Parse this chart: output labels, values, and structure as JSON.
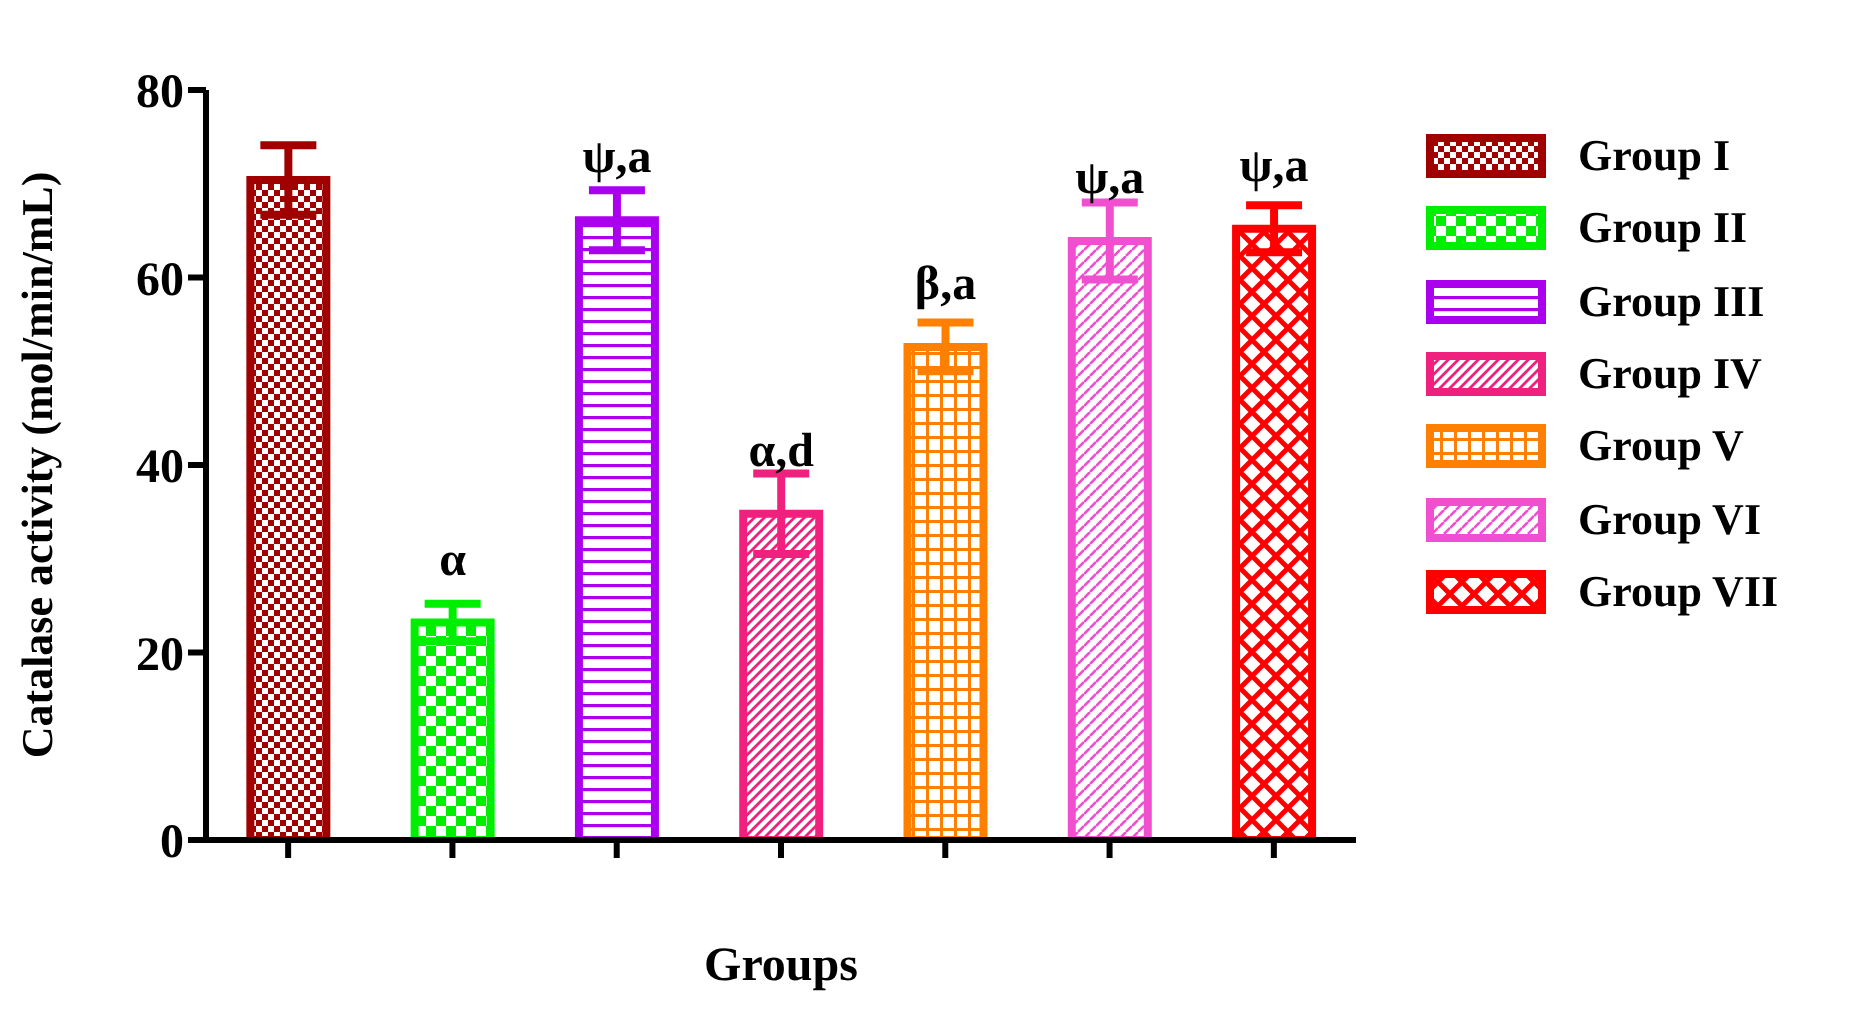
{
  "chart_data": {
    "type": "bar",
    "xlabel": "Groups",
    "ylabel": "Catalase activity (mol/min/mL)",
    "categories": [
      null,
      null,
      null,
      null,
      null,
      null,
      null
    ],
    "series": [
      {
        "name": "Group I",
        "color": "#a00000",
        "values": [
          70.4,
          null,
          null,
          null,
          null,
          null,
          null
        ],
        "errors": [
          3.7,
          null,
          null,
          null,
          null,
          null,
          null
        ]
      },
      {
        "name": "Group II",
        "color": "#00ee00",
        "values": [
          null,
          23.2,
          null,
          null,
          null,
          null,
          null
        ],
        "errors": [
          null,
          2.0,
          null,
          null,
          null,
          null,
          null
        ],
        "value_labels": [
          null,
          "α",
          null,
          null,
          null,
          null,
          null
        ]
      },
      {
        "name": "Group III",
        "color": "#aa00ee",
        "values": [
          null,
          null,
          66.1,
          null,
          null,
          null,
          null
        ],
        "errors": [
          null,
          null,
          3.2,
          null,
          null,
          null,
          null
        ],
        "value_labels": [
          null,
          null,
          "ψ,a",
          null,
          null,
          null,
          null
        ]
      },
      {
        "name": "Group IV",
        "color": "#f0207f",
        "values": [
          null,
          null,
          null,
          34.8,
          null,
          null,
          null
        ],
        "errors": [
          null,
          null,
          null,
          4.3,
          null,
          null,
          null
        ],
        "value_labels": [
          null,
          null,
          null,
          "α,d",
          null,
          null,
          null
        ]
      },
      {
        "name": "Group V",
        "color": "#ff8000",
        "values": [
          null,
          null,
          null,
          null,
          52.6,
          null,
          null
        ],
        "errors": [
          null,
          null,
          null,
          null,
          2.6,
          null,
          null
        ],
        "value_labels": [
          null,
          null,
          null,
          null,
          "β,a",
          null,
          null
        ]
      },
      {
        "name": "Group VI",
        "color": "#f050d0",
        "values": [
          null,
          null,
          null,
          null,
          null,
          63.9,
          null
        ],
        "errors": [
          null,
          null,
          null,
          null,
          null,
          4.1,
          null
        ],
        "value_labels": [
          null,
          null,
          null,
          null,
          null,
          "ψ,a",
          null
        ]
      },
      {
        "name": "Group VII",
        "color": "#ff0000",
        "values": [
          null,
          null,
          null,
          null,
          null,
          null,
          65.2
        ],
        "errors": [
          null,
          null,
          null,
          null,
          null,
          null,
          2.5
        ],
        "value_labels": [
          null,
          null,
          null,
          null,
          null,
          null,
          "ψ,a"
        ]
      }
    ],
    "ylim": [
      0,
      80
    ],
    "yticks": [
      0,
      20,
      40,
      60,
      80
    ],
    "legend": "right"
  }
}
